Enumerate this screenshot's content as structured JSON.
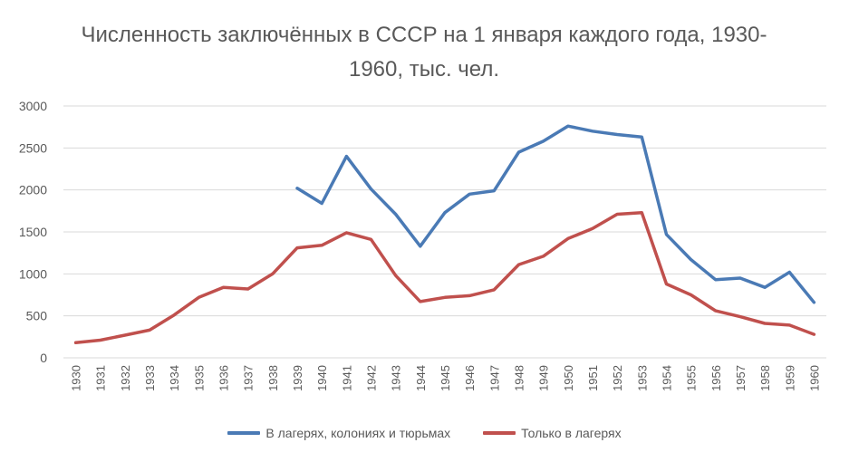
{
  "chart_data": {
    "type": "line",
    "title": "Численность заключённых в СССР на 1 января каждого года, 1930-1960, тыс. чел.",
    "categories": [
      "1930",
      "1931",
      "1932",
      "1933",
      "1934",
      "1935",
      "1936",
      "1937",
      "1938",
      "1939",
      "1940",
      "1941",
      "1942",
      "1943",
      "1944",
      "1945",
      "1946",
      "1947",
      "1948",
      "1949",
      "1950",
      "1951",
      "1952",
      "1953",
      "1954",
      "1955",
      "1956",
      "1957",
      "1958",
      "1959",
      "1960"
    ],
    "ylim": [
      0,
      3000
    ],
    "yticks": [
      0,
      500,
      1000,
      1500,
      2000,
      2500,
      3000
    ],
    "grid": true,
    "legend_position": "bottom",
    "series": [
      {
        "name": "В лагерях, колониях и тюрьмах",
        "color": "#4a7ab5",
        "values": [
          null,
          null,
          null,
          null,
          null,
          null,
          null,
          null,
          null,
          2020,
          1840,
          2400,
          2010,
          1710,
          1330,
          1730,
          1950,
          1990,
          2450,
          2580,
          2760,
          2700,
          2660,
          2630,
          1470,
          1170,
          930,
          950,
          840,
          1020,
          660
        ]
      },
      {
        "name": "Только в лагерях",
        "color": "#c0504d",
        "values": [
          180,
          210,
          270,
          330,
          510,
          720,
          840,
          820,
          1000,
          1310,
          1340,
          1490,
          1410,
          980,
          670,
          720,
          740,
          810,
          1110,
          1210,
          1420,
          1540,
          1710,
          1730,
          880,
          750,
          560,
          490,
          410,
          390,
          280
        ]
      }
    ]
  }
}
